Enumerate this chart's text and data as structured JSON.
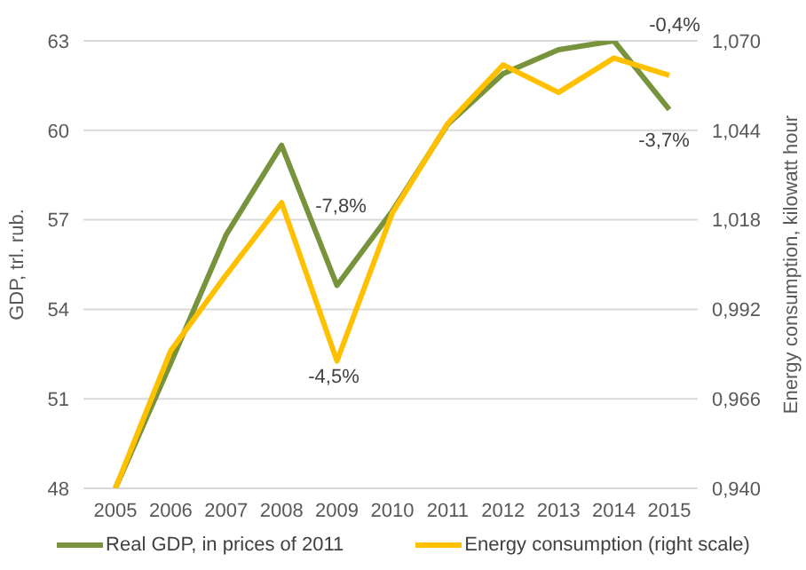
{
  "chart_data": {
    "type": "line",
    "xlabel": null,
    "ylabel": "GDP, trl. rub.",
    "y2label": "Energy consumption, kilowatt hour",
    "categories": [
      "2005",
      "2006",
      "2007",
      "2008",
      "2009",
      "2010",
      "2011",
      "2012",
      "2013",
      "2014",
      "2015"
    ],
    "series": [
      {
        "name": "Real GDP, in prices of 2011",
        "color": "#77933c",
        "values": [
          48,
          52.2,
          56.5,
          59.5,
          54.8,
          57.3,
          60.2,
          61.9,
          62.7,
          63,
          60.7
        ]
      },
      {
        "name": "Energy consumption (right scale)",
        "color": "#ffc000",
        "axis": "y2",
        "values": [
          0.94,
          0.98,
          1.002,
          1.023,
          0.977,
          1.02,
          1.046,
          1.063,
          1.055,
          1.065,
          1.06
        ]
      }
    ],
    "ylim": [
      48,
      63
    ],
    "yticks": [
      48,
      51,
      54,
      57,
      60,
      63
    ],
    "y2lim": [
      0.94,
      1.07
    ],
    "y2ticks": [
      {
        "value": 0.94,
        "label": "0,940"
      },
      {
        "value": 0.966,
        "label": "0,966"
      },
      {
        "value": 0.992,
        "label": "0,992"
      },
      {
        "value": 1.018,
        "label": "1,018"
      },
      {
        "value": 1.044,
        "label": "1,044"
      },
      {
        "value": 1.07,
        "label": "1,070"
      }
    ],
    "annotations": [
      "-7,8%",
      "-4,5%",
      "-0,4%",
      "-3,7%"
    ],
    "grid": "y",
    "legend": "bottom",
    "marker": "none",
    "line_style": "solid"
  }
}
